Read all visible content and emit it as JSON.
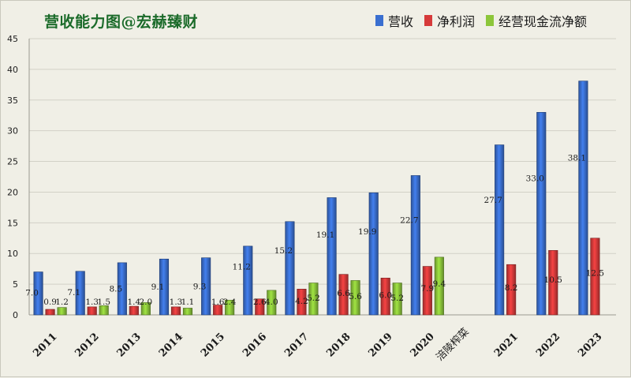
{
  "title": "营收能力图@宏赫臻财",
  "chart_data": {
    "type": "bar",
    "categories": [
      "2011",
      "2012",
      "2013",
      "2014",
      "2015",
      "2016",
      "2017",
      "2018",
      "2019",
      "2020",
      "涪陵榨菜",
      "2021",
      "2022",
      "2023"
    ],
    "series": [
      {
        "name": "营收",
        "color": "#3a6fd0",
        "values": [
          7.0,
          7.1,
          8.5,
          9.1,
          9.3,
          11.2,
          15.2,
          19.1,
          19.9,
          22.7,
          null,
          27.7,
          33.0,
          38.1
        ],
        "labels": [
          "7.0",
          "7.1",
          "8.5",
          "9.1",
          "9.3",
          "11.2",
          "15.2",
          "19.1",
          "19.9",
          "22.7",
          null,
          "27.7",
          "33.0",
          "38.1"
        ]
      },
      {
        "name": "净利润",
        "color": "#d63a3a",
        "values": [
          0.9,
          1.3,
          1.4,
          1.3,
          1.6,
          2.6,
          4.2,
          6.6,
          6.0,
          7.9,
          null,
          8.2,
          10.5,
          12.5
        ],
        "labels": [
          "0.9",
          "1.3",
          "1.4",
          "1.3",
          "1.6",
          "2.6",
          "4.2",
          "6.6",
          "6.0",
          "7.9",
          null,
          "8.2",
          "10.5",
          "12.5"
        ]
      },
      {
        "name": "经营现金流净额",
        "color": "#8cc63a",
        "values": [
          1.2,
          1.5,
          2.0,
          1.1,
          2.4,
          4.0,
          5.2,
          5.6,
          5.2,
          9.4,
          null,
          null,
          null,
          null
        ],
        "labels": [
          "1.2",
          "1.5",
          "2.0",
          "1.1",
          "2.4",
          "4.0",
          "5.2",
          "5.6",
          "5.2",
          "9.4",
          null,
          null,
          null,
          null
        ]
      }
    ],
    "yticks": [
      "0",
      "5",
      "10",
      "15",
      "20",
      "25",
      "30",
      "35",
      "40",
      "45"
    ],
    "ylim": [
      0,
      45
    ],
    "grid": true,
    "legend_position": "top-right"
  }
}
